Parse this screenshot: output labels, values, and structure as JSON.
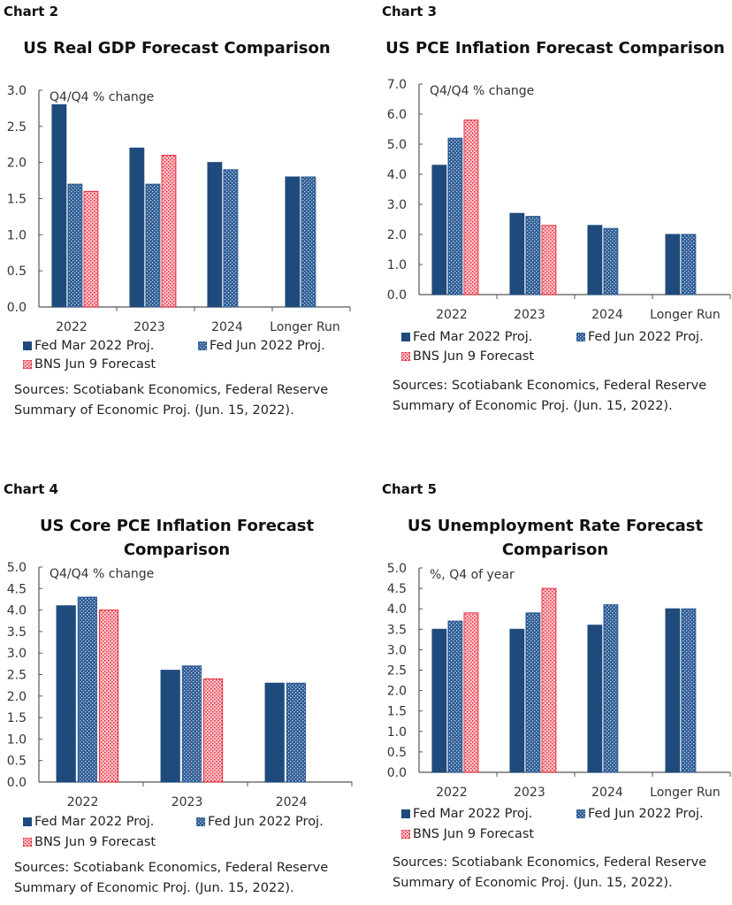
{
  "colors": {
    "fed_mar": "#1f4a7c",
    "fed_jun": "#2b5a92",
    "fed_jun_light": "#c9d6e8",
    "bns": "#e8293b",
    "bns_light": "#f7c4c9",
    "axis": "#555555"
  },
  "legend": {
    "fed_mar": "Fed Mar 2022 Proj.",
    "fed_jun": "Fed Jun 2022 Proj.",
    "bns": "BNS Jun 9 Forecast"
  },
  "sources": {
    "line1": "Sources: Scotiabank Economics, Federal Reserve",
    "line2": "Summary of Economic Proj. (Jun. 15, 2022)."
  },
  "chart_data": [
    {
      "label": "Chart 2",
      "type": "bar",
      "title": "US Real GDP Forecast Comparison",
      "unit_label": "Q4/Q4 % change",
      "categories": [
        "2022",
        "2023",
        "2024",
        "Longer Run"
      ],
      "ylim": [
        0,
        3.0
      ],
      "yticks": [
        "0.0",
        "0.5",
        "1.0",
        "1.5",
        "2.0",
        "2.5",
        "3.0"
      ],
      "ystep": 0.5,
      "series": [
        {
          "name": "Fed Mar 2022 Proj.",
          "values": [
            2.8,
            2.2,
            2.0,
            1.8
          ]
        },
        {
          "name": "Fed Jun 2022 Proj.",
          "values": [
            1.7,
            1.7,
            1.9,
            1.8
          ]
        },
        {
          "name": "BNS Jun 9 Forecast",
          "values": [
            1.6,
            2.1,
            null,
            null
          ]
        }
      ],
      "legend_position": "bottom",
      "grid": false
    },
    {
      "label": "Chart 3",
      "type": "bar",
      "title": "US PCE Inflation Forecast Comparison",
      "unit_label": "Q4/Q4 % change",
      "categories": [
        "2022",
        "2023",
        "2024",
        "Longer Run"
      ],
      "ylim": [
        0,
        7.0
      ],
      "yticks": [
        "0.0",
        "1.0",
        "2.0",
        "3.0",
        "4.0",
        "5.0",
        "6.0",
        "7.0"
      ],
      "ystep": 1.0,
      "series": [
        {
          "name": "Fed Mar 2022 Proj.",
          "values": [
            4.3,
            2.7,
            2.3,
            2.0
          ]
        },
        {
          "name": "Fed Jun 2022 Proj.",
          "values": [
            5.2,
            2.6,
            2.2,
            2.0
          ]
        },
        {
          "name": "BNS Jun 9 Forecast",
          "values": [
            5.8,
            2.3,
            null,
            null
          ]
        }
      ],
      "legend_position": "bottom",
      "grid": false
    },
    {
      "label": "Chart 4",
      "type": "bar",
      "title": "US Core PCE Inflation  Forecast Comparison",
      "title_line1": "US Core PCE Inflation  Forecast",
      "title_line2": "Comparison",
      "unit_label": "Q4/Q4 % change",
      "categories": [
        "2022",
        "2023",
        "2024"
      ],
      "ylim": [
        0,
        5.0
      ],
      "yticks": [
        "0.0",
        "0.5",
        "1.0",
        "1.5",
        "2.0",
        "2.5",
        "3.0",
        "3.5",
        "4.0",
        "4.5",
        "5.0"
      ],
      "ystep": 0.5,
      "series": [
        {
          "name": "Fed Mar 2022 Proj.",
          "values": [
            4.1,
            2.6,
            2.3
          ]
        },
        {
          "name": "Fed Jun 2022 Proj.",
          "values": [
            4.3,
            2.7,
            2.3
          ]
        },
        {
          "name": "BNS Jun 9 Forecast",
          "values": [
            4.0,
            2.4,
            null
          ]
        }
      ],
      "legend_position": "bottom",
      "grid": false
    },
    {
      "label": "Chart 5",
      "type": "bar",
      "title": "US Unemployment Rate Forecast Comparison",
      "title_line1": "US Unemployment Rate Forecast",
      "title_line2": "Comparison",
      "unit_label": "%, Q4 of year",
      "categories": [
        "2022",
        "2023",
        "2024",
        "Longer Run"
      ],
      "ylim": [
        0,
        5.0
      ],
      "yticks": [
        "0.0",
        "0.5",
        "1.0",
        "1.5",
        "2.0",
        "2.5",
        "3.0",
        "3.5",
        "4.0",
        "4.5",
        "5.0"
      ],
      "ystep": 0.5,
      "series": [
        {
          "name": "Fed Mar 2022 Proj.",
          "values": [
            3.5,
            3.5,
            3.6,
            4.0
          ]
        },
        {
          "name": "Fed Jun 2022 Proj.",
          "values": [
            3.7,
            3.9,
            4.1,
            4.0
          ]
        },
        {
          "name": "BNS Jun 9 Forecast",
          "values": [
            3.9,
            4.5,
            null,
            null
          ]
        }
      ],
      "legend_position": "bottom",
      "grid": false
    }
  ]
}
